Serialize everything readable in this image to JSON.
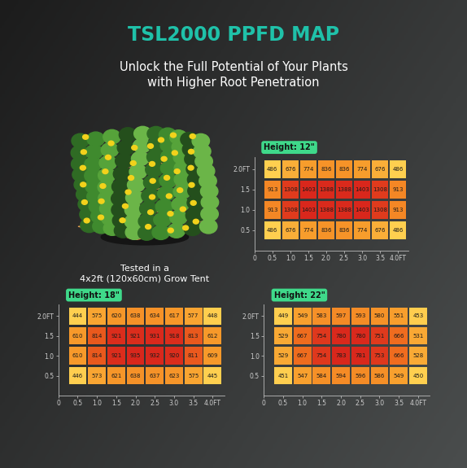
{
  "title": "TSL2000 PPFD MAP",
  "subtitle": [
    "Unlock the Full Potential of Your Plants",
    "with Higher Root Penetration"
  ],
  "caption": [
    "Tested in a",
    "4x2ft (120x60cm) Grow Tent"
  ],
  "chart_data": [
    {
      "type": "heatmap",
      "title": "Height: 12\"",
      "x": [
        0.5,
        1.0,
        1.5,
        2.0,
        2.5,
        3.0,
        3.5,
        4.0
      ],
      "y": [
        2.0,
        1.5,
        1.0,
        0.5
      ],
      "values": [
        [
          486,
          676,
          774,
          836,
          836,
          774,
          676,
          486
        ],
        [
          913,
          1308,
          1403,
          1388,
          1388,
          1403,
          1308,
          913
        ],
        [
          913,
          1308,
          1403,
          1388,
          1388,
          1403,
          1308,
          913
        ],
        [
          486,
          676,
          774,
          836,
          836,
          774,
          676,
          486
        ]
      ],
      "xlim": [
        0,
        4.3
      ],
      "ylim": [
        0,
        2.3
      ],
      "xticks": [
        0,
        0.5,
        1.0,
        1.5,
        2.0,
        2.5,
        3.0,
        3.5,
        {
          "value": 4.0,
          "label": "4.0FT"
        }
      ],
      "yticks": [
        0.5,
        1.0,
        1.5,
        {
          "value": 2.0,
          "label": "2.0FT"
        }
      ],
      "data_labels": true
    },
    {
      "type": "heatmap",
      "title": "Height: 18\"",
      "x": [
        0.5,
        1.0,
        1.5,
        2.0,
        2.5,
        3.0,
        3.5,
        4.0
      ],
      "y": [
        2.0,
        1.5,
        1.0,
        0.5
      ],
      "values": [
        [
          444,
          575,
          620,
          638,
          634,
          617,
          577,
          448
        ],
        [
          610,
          814,
          921,
          921,
          931,
          918,
          813,
          612
        ],
        [
          610,
          814,
          921,
          935,
          932,
          920,
          811,
          609
        ],
        [
          446,
          573,
          621,
          638,
          637,
          623,
          575,
          445
        ]
      ],
      "xlim": [
        0,
        4.3
      ],
      "ylim": [
        0,
        2.3
      ],
      "xticks": [
        0,
        0.5,
        1.0,
        1.5,
        2.0,
        2.5,
        3.0,
        3.5,
        {
          "value": 4.0,
          "label": "4.0FT"
        }
      ],
      "yticks": [
        0.5,
        1.0,
        1.5,
        {
          "value": 2.0,
          "label": "2.0FT"
        }
      ],
      "data_labels": true
    },
    {
      "type": "heatmap",
      "title": "Height: 22\"",
      "x": [
        0.5,
        1.0,
        1.5,
        2.0,
        2.5,
        3.0,
        3.5,
        4.0
      ],
      "y": [
        2.0,
        1.5,
        1.0,
        0.5
      ],
      "values": [
        [
          449,
          549,
          583,
          597,
          593,
          580,
          551,
          453
        ],
        [
          529,
          667,
          754,
          780,
          780,
          751,
          666,
          531
        ],
        [
          529,
          667,
          754,
          783,
          781,
          753,
          666,
          528
        ],
        [
          451,
          547,
          584,
          594,
          596,
          586,
          549,
          450
        ]
      ],
      "xlim": [
        0,
        4.3
      ],
      "ylim": [
        0,
        2.3
      ],
      "xticks": [
        0,
        0.5,
        1.0,
        1.5,
        2.0,
        2.5,
        3.0,
        3.5,
        {
          "value": 4.0,
          "label": "4.0FT"
        }
      ],
      "yticks": [
        0.5,
        1.0,
        1.5,
        {
          "value": 2.0,
          "label": "2.0FT"
        }
      ],
      "data_labels": true
    }
  ]
}
